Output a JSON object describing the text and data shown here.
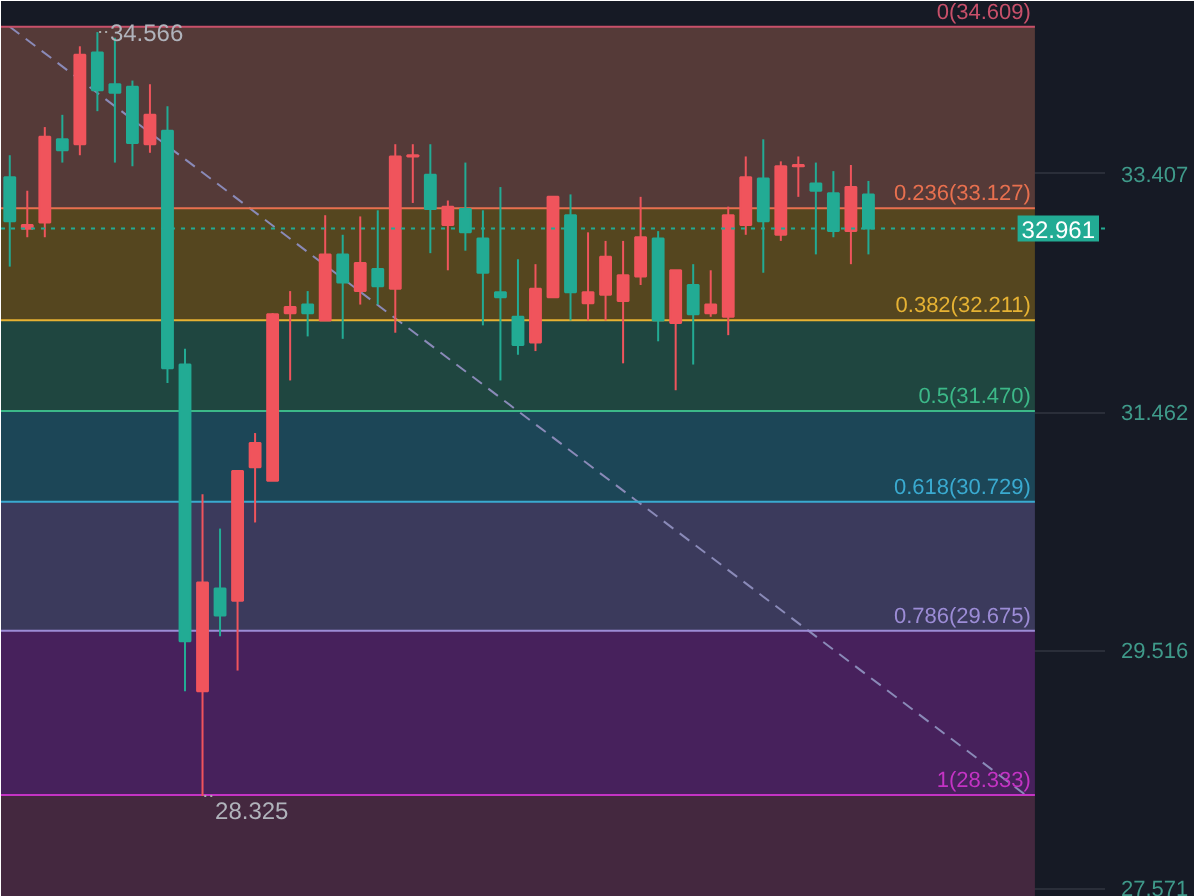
{
  "chart_data": {
    "type": "candlestick",
    "categories": [
      null,
      null,
      null,
      null,
      null,
      null,
      null,
      null,
      null,
      null,
      null,
      null,
      null,
      null,
      null,
      null,
      null,
      null,
      null,
      null,
      null,
      null,
      null,
      null,
      null,
      null,
      null,
      null,
      null,
      null,
      null,
      null,
      null,
      null,
      null,
      null,
      null,
      null,
      null,
      null,
      null,
      null,
      null,
      null,
      null,
      null,
      null,
      null,
      null,
      null,
      null,
      null,
      null,
      null,
      null,
      null,
      null,
      null,
      null,
      null,
      null,
      null,
      null
    ],
    "ohlc": [
      [
        33.38,
        33.56,
        32.65,
        33.02
      ],
      [
        32.96,
        33.27,
        32.89,
        32.99
      ],
      [
        33.01,
        33.79,
        32.89,
        33.71
      ],
      [
        33.69,
        33.89,
        33.5,
        33.6
      ],
      [
        33.65,
        34.45,
        33.56,
        34.38
      ],
      [
        34.4,
        34.566,
        33.92,
        34.09
      ],
      [
        34.14,
        34.52,
        33.5,
        34.07
      ],
      [
        34.12,
        34.17,
        33.47,
        33.66
      ],
      [
        33.65,
        34.14,
        33.58,
        33.89
      ],
      [
        33.76,
        33.96,
        31.7,
        31.82
      ],
      [
        31.85,
        31.98,
        29.18,
        29.59
      ],
      [
        29.18,
        30.79,
        28.325,
        30.07
      ],
      [
        30.02,
        30.51,
        29.63,
        29.8
      ],
      [
        29.92,
        30.98,
        29.35,
        30.98
      ],
      [
        31.01,
        31.29,
        30.56,
        31.21
      ],
      [
        30.9,
        32.27,
        30.9,
        32.26
      ],
      [
        32.27,
        32.45,
        31.72,
        32.32
      ],
      [
        32.34,
        32.45,
        32.08,
        32.27
      ],
      [
        32.21,
        33.07,
        32.21,
        32.75
      ],
      [
        32.75,
        32.91,
        32.06,
        32.52
      ],
      [
        32.45,
        33.06,
        32.34,
        32.68
      ],
      [
        32.63,
        33.11,
        32.34,
        32.49
      ],
      [
        32.47,
        33.65,
        32.11,
        33.55
      ],
      [
        33.55,
        33.65,
        33.17,
        33.56
      ],
      [
        33.4,
        33.65,
        32.76,
        33.12
      ],
      [
        32.99,
        33.19,
        32.62,
        33.14
      ],
      [
        33.12,
        33.5,
        32.78,
        32.93
      ],
      [
        32.88,
        33.11,
        32.17,
        32.6
      ],
      [
        32.44,
        33.3,
        31.72,
        32.4
      ],
      [
        32.24,
        32.71,
        31.93,
        32.01
      ],
      [
        32.03,
        32.67,
        31.96,
        32.47
      ],
      [
        32.4,
        33.22,
        32.4,
        33.22
      ],
      [
        33.07,
        33.24,
        32.21,
        32.44
      ],
      [
        32.35,
        32.93,
        32.21,
        32.44
      ],
      [
        32.42,
        32.86,
        32.21,
        32.73
      ],
      [
        32.37,
        32.86,
        31.86,
        32.58
      ],
      [
        32.57,
        33.22,
        32.5,
        32.89
      ],
      [
        32.88,
        32.94,
        32.04,
        32.21
      ],
      [
        32.19,
        32.62,
        31.64,
        32.62
      ],
      [
        32.5,
        32.67,
        31.85,
        32.26
      ],
      [
        32.27,
        32.62,
        32.24,
        32.34
      ],
      [
        32.24,
        33.14,
        32.09,
        33.07
      ],
      [
        32.99,
        33.55,
        32.91,
        33.38
      ],
      [
        33.37,
        33.69,
        32.6,
        33.02
      ],
      [
        32.91,
        33.51,
        32.86,
        33.47
      ],
      [
        33.47,
        33.55,
        33.22,
        33.48
      ],
      [
        33.33,
        33.5,
        32.75,
        33.27
      ],
      [
        33.25,
        33.43,
        32.89,
        32.94
      ],
      [
        32.94,
        33.48,
        32.67,
        33.3
      ],
      [
        33.24,
        33.35,
        32.75,
        32.961
      ],
      null,
      null,
      null,
      null,
      null,
      null,
      null,
      null,
      null,
      null,
      null,
      null,
      null
    ],
    "colors": [
      "#22ab94",
      "#f0545c",
      "#f0545c",
      "#22ab94",
      "#f0545c",
      "#22ab94",
      "#22ab94",
      "#22ab94",
      "#f0545c",
      "#22ab94",
      "#22ab94",
      "#f0545c",
      "#22ab94",
      "#f0545c",
      "#f0545c",
      "#f0545c",
      "#f0545c",
      "#22ab94",
      "#f0545c",
      "#22ab94",
      "#f0545c",
      "#22ab94",
      "#f0545c",
      "#f0545c",
      "#22ab94",
      "#f0545c",
      "#22ab94",
      "#22ab94",
      "#22ab94",
      "#22ab94",
      "#f0545c",
      "#f0545c",
      "#22ab94",
      "#f0545c",
      "#f0545c",
      "#f0545c",
      "#f0545c",
      "#22ab94",
      "#f0545c",
      "#22ab94",
      "#f0545c",
      "#f0545c",
      "#f0545c",
      "#22ab94",
      "#f0545c",
      "#f0545c",
      "#22ab94",
      "#22ab94",
      "#f0545c",
      "#22ab94",
      null,
      null,
      null,
      null,
      null,
      null,
      null,
      null,
      null,
      null,
      null,
      null,
      null
    ],
    "series": [
      {
        "type": "line",
        "values": [
          34.61,
          null,
          null,
          null,
          null,
          null,
          null,
          null,
          null,
          null,
          null,
          null,
          null,
          null,
          null,
          null,
          null,
          null,
          null,
          null,
          null,
          null,
          null,
          null,
          null,
          null,
          null,
          null,
          null,
          null,
          null,
          null,
          null,
          null,
          null,
          null,
          null,
          null,
          null,
          null,
          null,
          null,
          null,
          null,
          null,
          null,
          null,
          null,
          null,
          null,
          null,
          null,
          null,
          null,
          null,
          null,
          null,
          null,
          28.33,
          null,
          null,
          null,
          null
        ],
        "color": "#8a8ab8",
        "line_style": "dashed"
      }
    ],
    "ylim": [
      27.5,
      34.82
    ],
    "yticks": [
      33.407,
      31.462,
      29.516,
      27.571
    ],
    "grid": "y",
    "bands": [
      {
        "axis": "y",
        "from": 34.609,
        "to": 33.127,
        "color": "#553a38"
      },
      {
        "axis": "y",
        "from": 33.127,
        "to": 32.211,
        "color": "#55461f"
      },
      {
        "axis": "y",
        "from": 32.211,
        "to": 31.47,
        "color": "#1f4640"
      },
      {
        "axis": "y",
        "from": 31.47,
        "to": 30.729,
        "color": "#1c4657"
      },
      {
        "axis": "y",
        "from": 30.729,
        "to": 29.675,
        "color": "#3b3a5c"
      },
      {
        "axis": "y",
        "from": 29.675,
        "to": 28.333,
        "color": "#47215c"
      },
      {
        "axis": "y",
        "from": 28.333,
        "to": 27.5,
        "color": "#44283f"
      }
    ],
    "ref_lines": [
      {
        "axis": "y",
        "value": 34.609,
        "label": "0(34.609)",
        "color": "#c8506a"
      },
      {
        "axis": "y",
        "value": 33.127,
        "label": "0.236(33.127)",
        "color": "#e8704f"
      },
      {
        "axis": "y",
        "value": 32.211,
        "label": "0.382(32.211)",
        "color": "#e6b233"
      },
      {
        "axis": "y",
        "value": 31.47,
        "label": "0.5(31.470)",
        "color": "#3cb888"
      },
      {
        "axis": "y",
        "value": 30.729,
        "label": "0.618(30.729)",
        "color": "#3aaad0"
      },
      {
        "axis": "y",
        "value": 29.675,
        "label": "0.786(29.675)",
        "color": "#9c8cd6"
      },
      {
        "axis": "y",
        "value": 28.333,
        "label": "1(28.333)",
        "color": "#c433c4"
      },
      {
        "axis": "y",
        "value": 32.961,
        "label": "32.961",
        "color": "#22ab94",
        "line_style": "dotted"
      }
    ],
    "annotations": [
      {
        "text": "34.566",
        "y": 34.566
      },
      {
        "text": "28.325",
        "y": 28.325
      }
    ]
  }
}
